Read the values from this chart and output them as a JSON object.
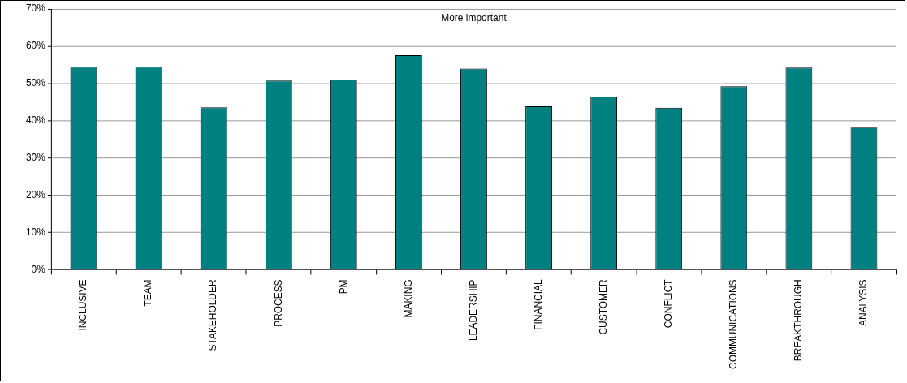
{
  "chart_data": {
    "type": "bar",
    "annotations": [
      "More important"
    ],
    "categories": [
      "INCLUSIVE",
      "TEAM",
      "STAKEHOLDER",
      "PROCESS",
      "PM",
      "MAKING",
      "LEADERSHIP",
      "FINANCIAL",
      "CUSTOMER",
      "CONFLICT",
      "COMMUNICATIONS",
      "BREAKTHROUGH",
      "ANALYSIS"
    ],
    "values": [
      54.5,
      54.5,
      43.6,
      50.8,
      51.1,
      57.6,
      54.0,
      43.9,
      46.5,
      43.5,
      49.3,
      54.3,
      38.2
    ],
    "color": "#008080",
    "ylim": [
      0,
      70
    ],
    "yticks": [
      {
        "value": 0,
        "label": "0%"
      },
      {
        "value": 10,
        "label": "10%"
      },
      {
        "value": 20,
        "label": "20%"
      },
      {
        "value": 30,
        "label": "30%"
      },
      {
        "value": 40,
        "label": "40%"
      },
      {
        "value": 50,
        "label": "50%"
      },
      {
        "value": 60,
        "label": "60%"
      },
      {
        "value": 70,
        "label": "70%"
      }
    ],
    "grid": "y",
    "legend": false
  }
}
